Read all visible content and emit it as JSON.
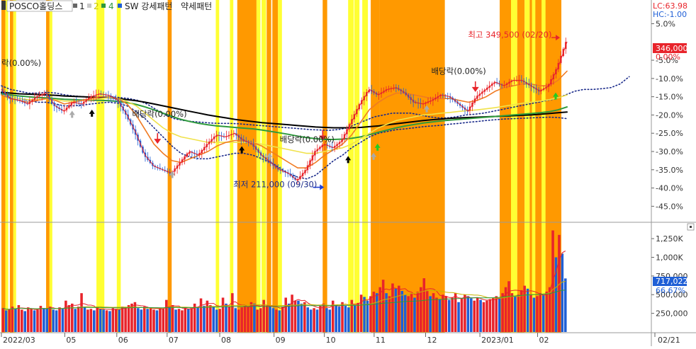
{
  "header": {
    "symbol": "POSCO홀딩스",
    "tokens": [
      "1",
      "2",
      "4"
    ],
    "indicator": "SW 강세패턴",
    "indicator2": "약세패턴"
  },
  "colors": {
    "strong": "#ff9900",
    "weak": "#ffff33",
    "up": "#e8242b",
    "down": "#1f5fd6",
    "ma_black": "#000000",
    "ma_green": "#2e9a3c",
    "ma_yellow": "#f0e24a",
    "ma_orange": "#f07a22",
    "dotted": "#1a2a8a",
    "price_box": "#e8242b",
    "vol_box": "#1f5fd6"
  },
  "chart_data": [
    {
      "type": "line",
      "title": "POSCO홀딩스",
      "y_unit": "%",
      "ylim": [
        -49,
        8
      ],
      "y_ticks": [
        "5.0%",
        "0.00%",
        "-5.0%",
        "-10.0%",
        "-15.0%",
        "-20.0%",
        "-25.0%",
        "-30.0%",
        "-35.0%",
        "-40.0%",
        "-45.0%"
      ],
      "lc_label": "LC:63.98",
      "hc_label": "HC:-1.00",
      "last_price": "346,000",
      "last_pct": "0.00%",
      "x_ticks": [
        "2022/03",
        "05",
        "06",
        "07",
        "08",
        "09",
        "10",
        "11",
        "12",
        "2023/01",
        "02",
        "02/21"
      ],
      "series": [
        {
          "key": "price",
          "values": [
            -13,
            -15.5,
            -16,
            -17,
            -15,
            -14,
            -17.5,
            -19,
            -16.5,
            -17,
            -15,
            -14.2,
            -14.6,
            -16,
            -20,
            -25,
            -31,
            -34,
            -35,
            -36,
            -33,
            -30,
            -31,
            -28,
            -25.5,
            -26,
            -25,
            -27,
            -28,
            -31,
            -33,
            -35,
            -36,
            -38,
            -35,
            -30,
            -28,
            -29,
            -27,
            -22,
            -17,
            -13,
            -14.5,
            -13,
            -12.5,
            -14,
            -16.5,
            -17,
            -16,
            -14.5,
            -15,
            -17,
            -19,
            -15,
            -13,
            -11,
            -12,
            -10.5,
            -10.5,
            -12,
            -13.5,
            -12,
            -7,
            0
          ]
        },
        {
          "key": "ma_orange",
          "values": [
            -14.5,
            -15.5,
            -16,
            -16.5,
            -16,
            -15.5,
            -16,
            -17,
            -16.5,
            -16,
            -15.5,
            -15,
            -15,
            -15.5,
            -17,
            -20,
            -24,
            -28,
            -30.5,
            -32.5,
            -33,
            -32,
            -31,
            -30,
            -28.5,
            -27.5,
            -27,
            -27,
            -27.5,
            -28.5,
            -30,
            -31.5,
            -33,
            -34.5,
            -34.5,
            -33,
            -31,
            -29.5,
            -28,
            -25.5,
            -22,
            -18.5,
            -16.5,
            -15,
            -14,
            -14,
            -14.5,
            -15,
            -15.5,
            -15.5,
            -15.5,
            -16,
            -16.5,
            -16,
            -15,
            -13.5,
            -12.5,
            -12,
            -11.5,
            -11.5,
            -12,
            -12,
            -10.5,
            -8
          ]
        },
        {
          "key": "ma_yellow",
          "values": [
            -14.5,
            -15,
            -15.5,
            -15.8,
            -15.8,
            -15.6,
            -15.8,
            -16.2,
            -16.2,
            -16,
            -15.8,
            -15.5,
            -15.3,
            -15.5,
            -16.3,
            -17.5,
            -19.5,
            -21.5,
            -23.5,
            -25,
            -26,
            -26.5,
            -27,
            -27.5,
            -27.5,
            -27.5,
            -27.5,
            -27.5,
            -27.5,
            -28,
            -28.5,
            -29,
            -29.5,
            -30,
            -30.5,
            -30.5,
            -30,
            -29.5,
            -29,
            -28,
            -26.5,
            -25,
            -23.5,
            -22.5,
            -21.5,
            -21,
            -20.5,
            -20,
            -19.8,
            -19.5,
            -19.3,
            -19,
            -18.8,
            -18.6,
            -18.3,
            -18,
            -17.6,
            -17.2,
            -16.8,
            -16.5,
            -16.2,
            -15.8,
            -15.3,
            -14.5
          ]
        },
        {
          "key": "ma_green",
          "values": [
            -14.2,
            -14.5,
            -14.8,
            -15,
            -15.2,
            -15.3,
            -15.5,
            -15.7,
            -15.8,
            -15.9,
            -16,
            -16,
            -16.1,
            -16.3,
            -16.6,
            -17.1,
            -17.8,
            -18.6,
            -19.5,
            -20.4,
            -21.2,
            -21.8,
            -22.3,
            -22.7,
            -23,
            -23.2,
            -23.4,
            -23.6,
            -23.8,
            -24.1,
            -24.5,
            -24.9,
            -25.3,
            -25.8,
            -26.2,
            -26.5,
            -26.7,
            -26.7,
            -26.6,
            -26.4,
            -26,
            -25.4,
            -24.7,
            -24.1,
            -23.5,
            -23,
            -22.6,
            -22.2,
            -21.9,
            -21.6,
            -21.4,
            -21.2,
            -21,
            -20.8,
            -20.6,
            -20.4,
            -20.2,
            -20,
            -19.8,
            -19.6,
            -19.4,
            -19.1,
            -18.6,
            -17.8
          ]
        },
        {
          "key": "ma_black",
          "values": [
            -13.8,
            -14,
            -14.2,
            -14.3,
            -14.4,
            -14.5,
            -14.6,
            -14.8,
            -14.9,
            -15,
            -15.1,
            -15.2,
            -15.3,
            -15.5,
            -15.8,
            -16.1,
            -16.5,
            -17,
            -17.5,
            -18,
            -18.5,
            -19,
            -19.5,
            -20,
            -20.4,
            -20.8,
            -21.2,
            -21.5,
            -21.8,
            -22.1,
            -22.3,
            -22.5,
            -22.7,
            -22.9,
            -23.1,
            -23.3,
            -23.4,
            -23.5,
            -23.5,
            -23.5,
            -23.4,
            -23.2,
            -23,
            -22.7,
            -22.4,
            -22.1,
            -21.8,
            -21.5,
            -21.3,
            -21.1,
            -20.9,
            -20.8,
            -20.7,
            -20.6,
            -20.5,
            -20.4,
            -20.3,
            -20.2,
            -20.1,
            -20,
            -19.8,
            -19.6,
            -19.4,
            -19.2
          ]
        },
        {
          "key": "dotted_upper",
          "x_end": 1.11,
          "values": [
            -12,
            -13,
            -13.5,
            -14,
            -14,
            -13.8,
            -14,
            -14.5,
            -14.8,
            -15,
            -15.2,
            -15.1,
            -15,
            -15.2,
            -15.5,
            -16,
            -17,
            -18.5,
            -20,
            -21,
            -21.5,
            -21.8,
            -22,
            -22.2,
            -22.3,
            -22.3,
            -22.4,
            -22.6,
            -22.8,
            -23,
            -23.2,
            -23.4,
            -23.6,
            -23.8,
            -24,
            -24.1,
            -24.2,
            -24,
            -23.5,
            -22.5,
            -21.5,
            -20.5,
            -20,
            -19.5,
            -19.5,
            -19.5,
            -20,
            -20.5,
            -20.8,
            -20.8,
            -20.5,
            -20,
            -19.8,
            -19.5,
            -19,
            -18.5,
            -18,
            -17.5,
            -17,
            -16.5,
            -16,
            -15.5,
            -14.5,
            -13.5,
            -13,
            -13,
            -12.8,
            -12.5,
            -11.5,
            -9.5
          ]
        },
        {
          "key": "dotted_lower",
          "values": [
            -14,
            -15,
            -15.5,
            -16,
            -16.5,
            -16.5,
            -17,
            -17.5,
            -17.5,
            -17.3,
            -17,
            -16.7,
            -16.5,
            -16.8,
            -17.5,
            -19,
            -21,
            -23.5,
            -26,
            -28.5,
            -30.5,
            -31.5,
            -32,
            -32,
            -31.5,
            -31,
            -30.5,
            -30.5,
            -31,
            -32,
            -33,
            -34.5,
            -36,
            -37,
            -37.5,
            -36.5,
            -34.5,
            -32.5,
            -31,
            -29,
            -27.5,
            -26,
            -25,
            -24.5,
            -24,
            -23.8,
            -23.5,
            -23.2,
            -23,
            -22.8,
            -22.5,
            -22.3,
            -22,
            -21.8,
            -21.5,
            -21.3,
            -21.1,
            -21,
            -20.9,
            -20.8,
            -20.7,
            -20.6,
            -20.7,
            -21
          ]
        }
      ],
      "annotations": [
        {
          "text": "락(0.00%)",
          "x": 0.0,
          "y": -6.5
        },
        {
          "text": "배당락(0.00%)",
          "x": 0.231,
          "y": -20.5
        },
        {
          "text": "배당락(0.00%)",
          "x": 0.492,
          "y": -27.5
        },
        {
          "text": "배당락(0.00%)",
          "x": 0.76,
          "y": -8.8
        },
        {
          "text": "최저 211,000 (09/30)",
          "x": 0.41,
          "y": -39.8,
          "color": "#1a2a8a"
        },
        {
          "text": "최고 349,500 (02/20)",
          "x": 0.825,
          "y": 1.2,
          "color": "#e8242b"
        }
      ],
      "markers": [
        {
          "kind": "down",
          "x": 0.276,
          "y": -27.7,
          "color": "#e8242b"
        },
        {
          "kind": "down",
          "x": 0.568,
          "y": -26.8,
          "color": "#e8242b"
        },
        {
          "kind": "down",
          "x": 0.838,
          "y": -13.5,
          "color": "#e8242b"
        },
        {
          "kind": "up",
          "x": 0.16,
          "y": -19.7,
          "color": "#000000"
        },
        {
          "kind": "up",
          "x": 0.425,
          "y": -29.7,
          "color": "#000000"
        },
        {
          "kind": "up",
          "x": 0.613,
          "y": -32.4,
          "color": "#000000"
        },
        {
          "kind": "up",
          "x": 0.125,
          "y": -20,
          "color": "#aaaaaa"
        },
        {
          "kind": "up",
          "x": 0.302,
          "y": -36.5,
          "color": "#aaaaaa"
        },
        {
          "kind": "up",
          "x": 0.474,
          "y": -31.5,
          "color": "#aaaaaa"
        },
        {
          "kind": "up",
          "x": 0.658,
          "y": -31.5,
          "color": "#aaaaaa"
        },
        {
          "kind": "up",
          "x": 0.752,
          "y": -18.5,
          "color": "#aaaaaa"
        },
        {
          "kind": "up",
          "x": 0.665,
          "y": -29,
          "color": "#22cc22"
        },
        {
          "kind": "up",
          "x": 0.98,
          "y": -15,
          "color": "#22cc22"
        }
      ],
      "bands": [
        {
          "kind": "strong",
          "x0": 0.0,
          "x1": 0.007
        },
        {
          "kind": "weak",
          "x0": 0.007,
          "x1": 0.012
        },
        {
          "kind": "strong",
          "x0": 0.015,
          "x1": 0.021
        },
        {
          "kind": "weak",
          "x0": 0.021,
          "x1": 0.026
        },
        {
          "kind": "strong",
          "x0": 0.079,
          "x1": 0.085
        },
        {
          "kind": "weak",
          "x0": 0.085,
          "x1": 0.09
        },
        {
          "kind": "weak",
          "x0": 0.168,
          "x1": 0.182
        },
        {
          "kind": "weak",
          "x0": 0.204,
          "x1": 0.211
        },
        {
          "kind": "strong",
          "x0": 0.294,
          "x1": 0.301
        },
        {
          "kind": "weak",
          "x0": 0.379,
          "x1": 0.385
        },
        {
          "kind": "weak",
          "x0": 0.404,
          "x1": 0.41
        },
        {
          "kind": "strong",
          "x0": 0.417,
          "x1": 0.423
        },
        {
          "kind": "strong",
          "x0": 0.42,
          "x1": 0.451
        },
        {
          "kind": "weak",
          "x0": 0.451,
          "x1": 0.458
        },
        {
          "kind": "weak",
          "x0": 0.46,
          "x1": 0.468
        },
        {
          "kind": "strong",
          "x0": 0.469,
          "x1": 0.477
        },
        {
          "kind": "strong",
          "x0": 0.479,
          "x1": 0.489
        },
        {
          "kind": "weak",
          "x0": 0.489,
          "x1": 0.496
        },
        {
          "kind": "strong",
          "x0": 0.568,
          "x1": 0.576
        },
        {
          "kind": "weak",
          "x0": 0.613,
          "x1": 0.623
        },
        {
          "kind": "weak",
          "x0": 0.624,
          "x1": 0.633
        },
        {
          "kind": "weak",
          "x0": 0.638,
          "x1": 0.648
        },
        {
          "kind": "strong",
          "x0": 0.653,
          "x1": 0.668
        },
        {
          "kind": "strong",
          "x0": 0.668,
          "x1": 0.784
        },
        {
          "kind": "strong",
          "x0": 0.881,
          "x1": 0.901
        },
        {
          "kind": "weak",
          "x0": 0.901,
          "x1": 0.912
        },
        {
          "kind": "strong",
          "x0": 0.912,
          "x1": 0.925
        },
        {
          "kind": "weak",
          "x0": 0.925,
          "x1": 0.934
        },
        {
          "kind": "strong",
          "x0": 0.934,
          "x1": 0.99
        },
        {
          "kind": "weak",
          "x0": 0.938,
          "x1": 0.944
        },
        {
          "kind": "weak",
          "x0": 0.955,
          "x1": 0.962
        }
      ]
    },
    {
      "type": "bar",
      "title": "Volume",
      "ylim": [
        0,
        1450000
      ],
      "y_ticks": [
        "1,250K",
        "1,000K",
        "750,000",
        "500,000",
        "250,000"
      ],
      "last_volume": "717,022",
      "last_volume_pct": "66.67%",
      "values": [
        320000,
        290000,
        300000,
        340000,
        310000,
        360000,
        300000,
        280000,
        330000,
        310000,
        290000,
        300000,
        350000,
        320000,
        310000,
        340000,
        300000,
        290000,
        330000,
        310000,
        420000,
        360000,
        380000,
        310000,
        340000,
        520000,
        330000,
        300000,
        310000,
        290000,
        330000,
        310000,
        300000,
        290000,
        280000,
        320000,
        310000,
        300000,
        340000,
        330000,
        360000,
        380000,
        400000,
        320000,
        300000,
        340000,
        310000,
        330000,
        300000,
        290000,
        320000,
        310000,
        430000,
        340000,
        360000,
        300000,
        310000,
        290000,
        330000,
        310000,
        320000,
        380000,
        330000,
        450000,
        350000,
        420000,
        360000,
        340000,
        300000,
        310000,
        460000,
        380000,
        340000,
        520000,
        320000,
        300000,
        330000,
        350000,
        340000,
        400000,
        380000,
        300000,
        320000,
        430000,
        350000,
        340000,
        320000,
        300000,
        290000,
        340000,
        460000,
        380000,
        500000,
        420000,
        420000,
        380000,
        400000,
        330000,
        300000,
        320000,
        300000,
        350000,
        380000,
        320000,
        300000,
        420000,
        360000,
        340000,
        400000,
        350000,
        330000,
        430000,
        360000,
        390000,
        500000,
        470000,
        420000,
        480000,
        540000,
        520000,
        600000,
        700000,
        520000,
        480000,
        650000,
        580000,
        620000,
        550000,
        500000,
        480000,
        520000,
        460000,
        540000,
        600000,
        720000,
        560000,
        480000,
        520000,
        460000,
        440000,
        500000,
        480000,
        430000,
        460000,
        520000,
        400000,
        450000,
        500000,
        480000,
        450000,
        420000,
        460000,
        430000,
        400000,
        420000,
        440000,
        460000,
        480000,
        450000,
        520000,
        600000,
        680000,
        520000,
        480000,
        500000,
        560000,
        620000,
        580000,
        500000,
        460000,
        480000,
        520000,
        500000,
        540000,
        600000,
        1360000,
        1000000,
        1300000,
        1050000,
        717022
      ]
    }
  ]
}
